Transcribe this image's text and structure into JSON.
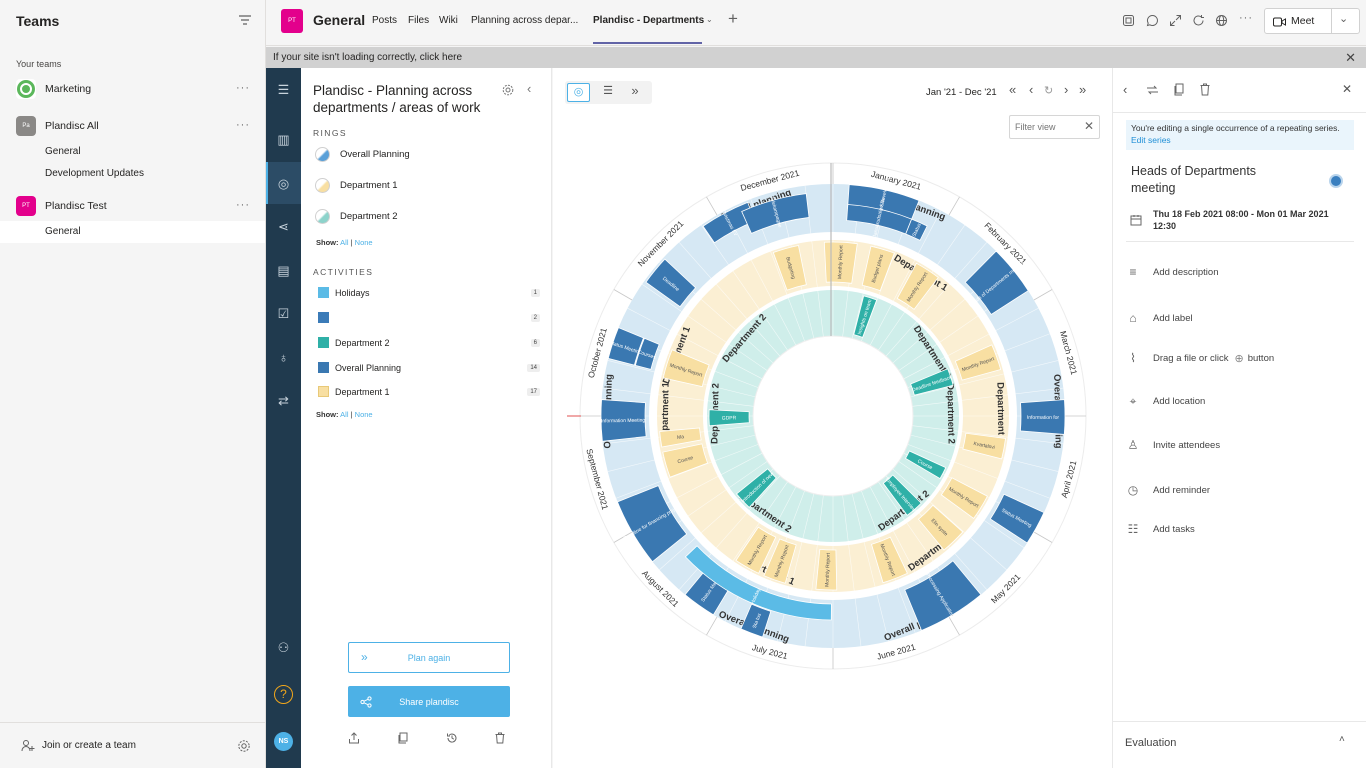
{
  "sidebar": {
    "title": "Teams",
    "section_label": "Your teams",
    "teams": [
      {
        "name": "Marketing",
        "initials": "",
        "color": "#5bb75b",
        "more": "···"
      },
      {
        "name": "Plandisc All",
        "initials": "Pa",
        "color": "#8a8886",
        "more": "···"
      },
      {
        "name": "Plandisc Test",
        "initials": "PT",
        "color": "#e3008c",
        "more": "···"
      }
    ],
    "channels": [
      "General",
      "Development Updates"
    ],
    "test_channel": "General",
    "join_label": "Join or create a team"
  },
  "topbar": {
    "badge": "PT",
    "channel_name": "General",
    "tabs": [
      "Posts",
      "Files",
      "Wiki",
      "Planning across depar...",
      "Plandisc - Departments"
    ],
    "meet_label": "Meet",
    "accent": "#6264a7"
  },
  "notice": {
    "text": "If your site isn't loading correctly, click here"
  },
  "nav": {
    "user_initials": "NS"
  },
  "rings_panel": {
    "title": "Plandisc - Planning across departments / areas of work",
    "rings_heading": "RINGS",
    "rings": [
      "Overall Planning",
      "Department 1",
      "Department 2"
    ],
    "show_label": "Show:",
    "show_all": "All",
    "show_sep": "|",
    "show_none": "None",
    "activities_heading": "ACTIVITIES",
    "activities": [
      {
        "name": "Holidays",
        "count": "1",
        "color": "#5bbbe6"
      },
      {
        "name": "",
        "count": "2",
        "color": "#3b7bb8"
      },
      {
        "name": "Department 2",
        "count": "6",
        "color": "#2fb0a7"
      },
      {
        "name": "Overall Planning",
        "count": "14",
        "color": "#3a78b1"
      },
      {
        "name": "Department 1",
        "count": "17",
        "color": "#f8dfa2"
      }
    ],
    "plan_again": "Plan again",
    "share": "Share plandisc"
  },
  "canvas": {
    "date_range": "Jan '21 - Dec '21",
    "filter_placeholder": "Filter view",
    "ring_labels": {
      "overall": "Overall planning",
      "dept1": "Department 1",
      "dept2": "Department 2"
    },
    "months": [
      "January 2021",
      "February 2021",
      "March 2021",
      "April 2021",
      "May 2021",
      "June 2021",
      "July 2021",
      "August 2021",
      "September 2021",
      "October 2021",
      "November 2021",
      "December 2021"
    ],
    "events": [
      {
        "label": "Christmas Ev"
      },
      {
        "label": "Julekampagne"
      },
      {
        "label": "Employee Development"
      },
      {
        "label": "Januarudsalg Sale"
      },
      {
        "label": "Status"
      },
      {
        "label": "Deadline"
      },
      {
        "label": "Heads of Departments meeting"
      },
      {
        "label": "Status Meeting"
      },
      {
        "label": "Courses"
      },
      {
        "label": "Information Meeting"
      },
      {
        "label": "Information for"
      },
      {
        "label": "Deadline for financing project"
      },
      {
        "label": "Status Meeting"
      },
      {
        "label": "Status Meeting"
      },
      {
        "label": "Processing Applications"
      },
      {
        "label": "Holiday"
      },
      {
        "label": "Sta tus"
      },
      {
        "label": "Monthly Report"
      },
      {
        "label": "Budget plans"
      },
      {
        "label": "Budgeting"
      },
      {
        "label": "Kvartalsvi"
      },
      {
        "label": "Course"
      },
      {
        "label": "Ma"
      },
      {
        "label": "GDPR"
      },
      {
        "label": "Deadline feedback"
      },
      {
        "label": "Insights on team"
      },
      {
        "label": "Course"
      },
      {
        "label": "Employee Interview"
      },
      {
        "label": "Introduction of new"
      },
      {
        "label": "Elin syste"
      }
    ]
  },
  "detail": {
    "notice_text": "You're editing a single occurrence of a repeating series.",
    "notice_link": "Edit series",
    "title": "Heads of Departments meeting",
    "dot_color": "#3a7fbf",
    "date_line": "Thu 18 Feb 2021 08:00 - Mon 01 Mar 2021 12:30",
    "items": [
      "Add description",
      "Add label",
      "Drag a file or click",
      "Add location",
      "Invite attendees",
      "Add reminder",
      "Add tasks"
    ],
    "button_word": "button",
    "evaluation": "Evaluation"
  }
}
